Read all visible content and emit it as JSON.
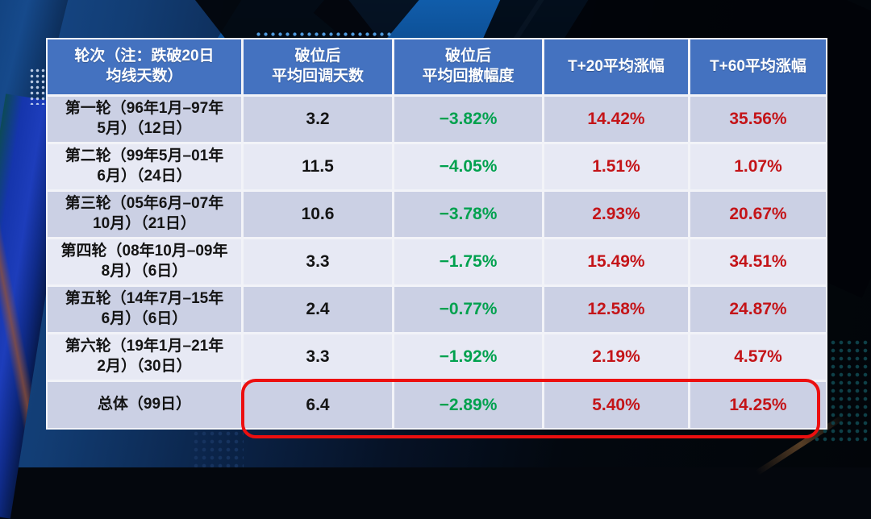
{
  "chart_data": {
    "type": "table",
    "title": "",
    "columns": [
      "轮次（注：跌破20日\n均线天数）",
      "破位后\n平均回调天数",
      "破位后\n平均回撤幅度",
      "T+20平均涨幅",
      "T+60平均涨幅"
    ],
    "rows": [
      {
        "cells": [
          "第一轮（96年1月–97年\n5月）（12日）",
          "3.2",
          "−3.82%",
          "14.42%",
          "35.56%"
        ]
      },
      {
        "cells": [
          "第二轮（99年5月–01年\n6月）（24日）",
          "11.5",
          "−4.05%",
          "1.51%",
          "1.07%"
        ]
      },
      {
        "cells": [
          "第三轮（05年6月–07年\n10月）（21日）",
          "10.6",
          "−3.78%",
          "2.93%",
          "20.67%"
        ]
      },
      {
        "cells": [
          "第四轮（08年10月–09年\n8月）（6日）",
          "3.3",
          "−1.75%",
          "15.49%",
          "34.51%"
        ]
      },
      {
        "cells": [
          "第五轮（14年7月–15年\n6月）（6日）",
          "2.4",
          "−0.77%",
          "12.58%",
          "24.87%"
        ]
      },
      {
        "cells": [
          "第六轮（19年1月–21年\n2月）（30日）",
          "3.3",
          "−1.92%",
          "2.19%",
          "4.57%"
        ]
      },
      {
        "cells": [
          "总体（99日）",
          "6.4",
          "−2.89%",
          "5.40%",
          "14.25%"
        ]
      }
    ],
    "highlight": "total-row value cells circled with red rounded rectangle",
    "colors": {
      "header_bg": "#4472C0",
      "row_odd": "#CBD0E4",
      "row_even": "#E7E9F4",
      "grid_line": "#F2F3F8",
      "negative_green": "#00A14E",
      "positive_red": "#C41418",
      "highlight_stroke": "#EC0F0F"
    }
  }
}
